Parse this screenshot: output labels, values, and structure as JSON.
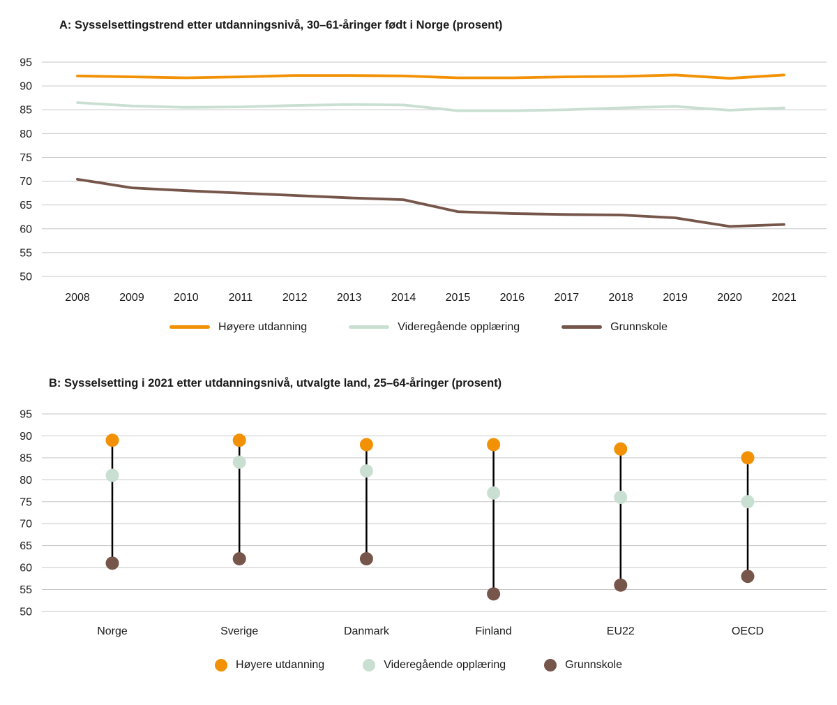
{
  "colors": {
    "hoyere": "#F29105",
    "videregaende": "#C9DFD2",
    "grunnskole": "#76554A",
    "grid": "#C6C6C6",
    "text": "#1A1A1A",
    "connector": "#000000"
  },
  "chart_data": [
    {
      "id": "panelA",
      "type": "line",
      "title": "A: Sysselsettingstrend etter utdanningsnivå, 30–61-åringer født i Norge (prosent)",
      "x": [
        2008,
        2009,
        2010,
        2011,
        2012,
        2013,
        2014,
        2015,
        2016,
        2017,
        2018,
        2019,
        2020,
        2021
      ],
      "ylim": [
        50,
        95
      ],
      "ytick_step": 5,
      "grid": true,
      "legend_position": "bottom",
      "series": [
        {
          "name": "Høyere utdanning",
          "color_key": "hoyere",
          "values": [
            92.1,
            91.9,
            91.7,
            91.9,
            92.2,
            92.2,
            92.1,
            91.7,
            91.7,
            91.9,
            92.0,
            92.3,
            91.6,
            92.3
          ]
        },
        {
          "name": "Videregående opplæring",
          "color_key": "videregaende",
          "values": [
            86.5,
            85.8,
            85.5,
            85.6,
            85.9,
            86.1,
            86.0,
            84.8,
            84.8,
            85.0,
            85.4,
            85.7,
            84.9,
            85.4
          ]
        },
        {
          "name": "Grunnskole",
          "color_key": "grunnskole",
          "values": [
            70.4,
            68.6,
            68.0,
            67.5,
            67.0,
            66.5,
            66.1,
            63.6,
            63.2,
            63.0,
            62.9,
            62.3,
            60.5,
            60.9
          ]
        }
      ]
    },
    {
      "id": "panelB",
      "type": "scatter",
      "title": "B: Sysselsetting i 2021 etter utdanningsnivå, utvalgte land, 25–64-åringer (prosent)",
      "categories": [
        "Norge",
        "Sverige",
        "Danmark",
        "Finland",
        "EU22",
        "OECD"
      ],
      "ylim": [
        50,
        95
      ],
      "ytick_step": 5,
      "grid": true,
      "legend_position": "bottom",
      "series": [
        {
          "name": "Høyere utdanning",
          "color_key": "hoyere",
          "values": [
            89,
            89,
            88,
            88,
            87,
            85
          ]
        },
        {
          "name": "Videregående opplæring",
          "color_key": "videregaende",
          "values": [
            81,
            84,
            82,
            77,
            76,
            75
          ]
        },
        {
          "name": "Grunnskole",
          "color_key": "grunnskole",
          "values": [
            61,
            62,
            62,
            54,
            56,
            58
          ]
        }
      ]
    }
  ]
}
